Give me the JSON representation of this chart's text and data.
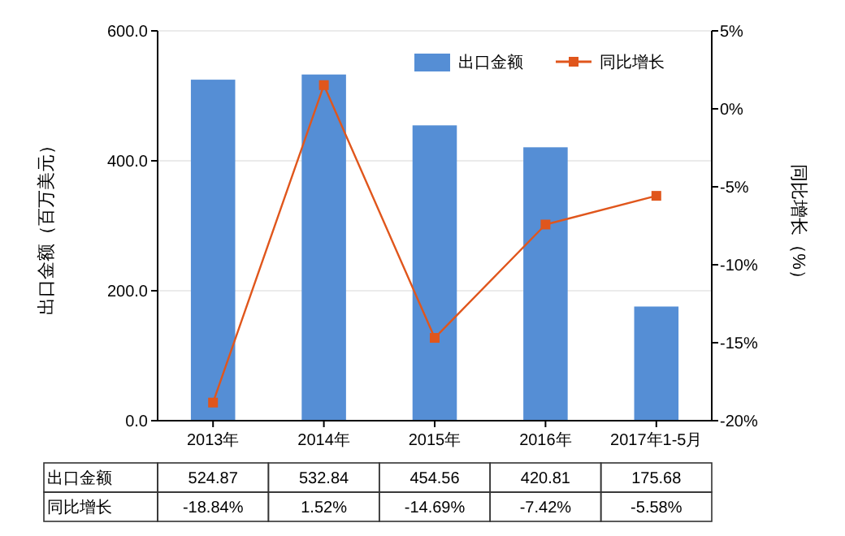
{
  "chart_data": {
    "type": "bar",
    "categories": [
      "2013年",
      "2014年",
      "2015年",
      "2016年",
      "2017年1-5月"
    ],
    "series": [
      {
        "name": "出口金额",
        "color": "#558ed5",
        "values": [
          524.87,
          532.84,
          454.56,
          420.81,
          175.68
        ],
        "value_labels": [
          "524.87",
          "532.84",
          "454.56",
          "420.81",
          "175.68"
        ]
      },
      {
        "name": "同比增长",
        "type": "line",
        "axis": "y2",
        "color": "#e0561c",
        "marker": "square",
        "values": [
          -18.84,
          1.52,
          -14.69,
          -7.42,
          -5.58
        ],
        "value_labels": [
          "-18.84%",
          "1.52%",
          "-14.69%",
          "-7.42%",
          "-5.58%"
        ]
      }
    ],
    "ylabel": "出口金额（百万美元）",
    "y2label": "同比增长（%）",
    "ylim": [
      0,
      600
    ],
    "yticks": [
      {
        "value": 0,
        "label": "0.0"
      },
      {
        "value": 200,
        "label": "200.0"
      },
      {
        "value": 400,
        "label": "400.0"
      },
      {
        "value": 600,
        "label": "600.0"
      }
    ],
    "y2lim": [
      -20,
      5
    ],
    "y2ticks": [
      {
        "value": -20,
        "label": "-20%"
      },
      {
        "value": -15,
        "label": "-15%"
      },
      {
        "value": -10,
        "label": "-10%"
      },
      {
        "value": -5,
        "label": "-5%"
      },
      {
        "value": 0,
        "label": "0%"
      },
      {
        "value": 5,
        "label": "5%"
      }
    ],
    "grid": "y",
    "legend": "top right"
  }
}
